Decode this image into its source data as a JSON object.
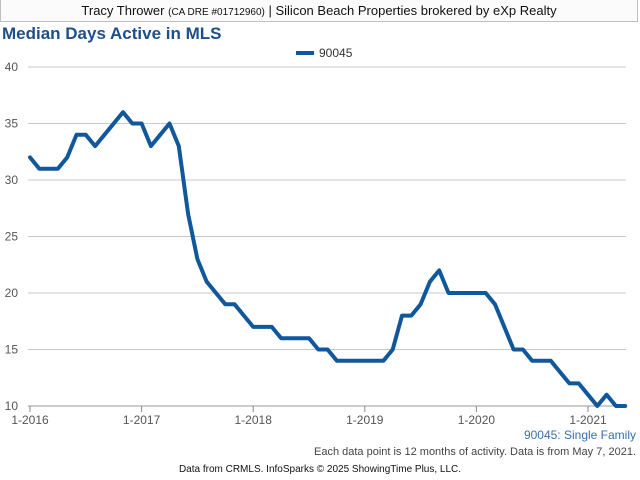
{
  "header": {
    "agent": "Tracy Thrower",
    "license": "(CA DRE #01712960)",
    "separator": "|",
    "brokerage": "Silicon Beach Properties brokered by eXp Realty"
  },
  "colors": {
    "series": "#11579c",
    "title": "#1f4e8c"
  },
  "chart_data": {
    "type": "line",
    "title": "Median Days Active in MLS",
    "xlabel": "",
    "ylabel": "",
    "ylim": [
      10,
      40
    ],
    "yticks": [
      10,
      15,
      20,
      25,
      30,
      35,
      40
    ],
    "x_ticks": [
      "1-2016",
      "1-2017",
      "1-2018",
      "1-2019",
      "1-2020",
      "1-2021"
    ],
    "x_start": "1-2016",
    "x_unit": "months since 1-2016",
    "grid": true,
    "legend": "top-center",
    "series": [
      {
        "name": "90045",
        "x": [
          0,
          1,
          2,
          3,
          4,
          5,
          6,
          7,
          8,
          9,
          10,
          11,
          12,
          13,
          14,
          15,
          16,
          17,
          18,
          19,
          20,
          21,
          22,
          23,
          24,
          25,
          26,
          27,
          28,
          29,
          30,
          31,
          32,
          33,
          34,
          35,
          36,
          37,
          38,
          39,
          40,
          41,
          42,
          43,
          44,
          45,
          46,
          47,
          48,
          49,
          50,
          51,
          52,
          53,
          54,
          55,
          56,
          57,
          58,
          59,
          60,
          61,
          62,
          63,
          64
        ],
        "values": [
          32,
          31,
          31,
          31,
          32,
          34,
          34,
          33,
          34,
          35,
          36,
          35,
          35,
          33,
          34,
          35,
          33,
          27,
          23,
          21,
          20,
          19,
          19,
          18,
          17,
          17,
          17,
          16,
          16,
          16,
          16,
          15,
          15,
          14,
          14,
          14,
          14,
          14,
          14,
          15,
          18,
          18,
          19,
          21,
          22,
          20,
          20,
          20,
          20,
          20,
          19,
          17,
          15,
          15,
          14,
          14,
          14,
          13,
          12,
          12,
          11,
          10,
          11,
          10,
          10
        ]
      }
    ],
    "segment_label": "90045: Single Family",
    "note": "Each data point is 12 months of activity. Data is from May 7, 2021."
  },
  "footer": "Data from CRMLS. InfoSparks © 2025 ShowingTime Plus, LLC."
}
